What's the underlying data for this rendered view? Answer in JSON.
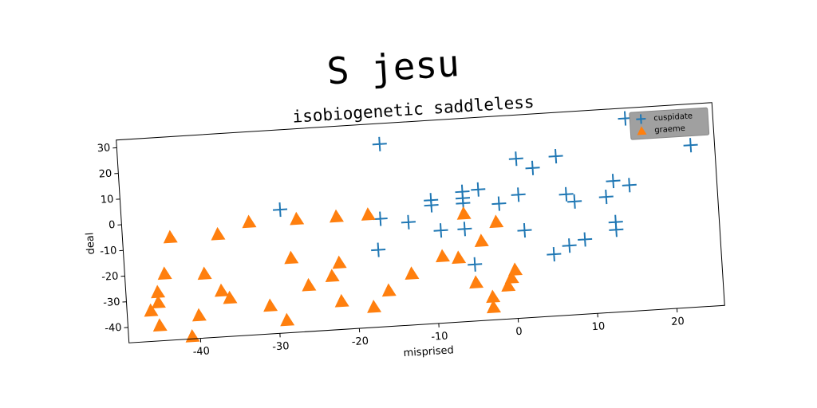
{
  "chart_data": {
    "type": "scatter",
    "suptitle": "S jesu",
    "title": "isobiogenetic saddleless",
    "xlabel": "misprised",
    "ylabel": "deal",
    "xlim": [
      -49,
      26
    ],
    "ylim": [
      -46,
      33
    ],
    "xticks": [
      -40,
      -30,
      -20,
      -10,
      0,
      10,
      20
    ],
    "yticks": [
      -40,
      -30,
      -20,
      -10,
      0,
      10,
      20,
      30
    ],
    "legend": "upper right",
    "series": [
      {
        "name": "cuspidate",
        "color": "#1f77b4",
        "marker": "plus",
        "x": [
          -16,
          -29,
          -16.5,
          -17,
          -13,
          -10,
          -10,
          -9,
          -6,
          -6,
          -6,
          -6,
          -4,
          -5,
          -1.5,
          1,
          1,
          1.5,
          3,
          6,
          5,
          7,
          7,
          8,
          9,
          12,
          13,
          13,
          13,
          15,
          15,
          23
        ],
        "values": [
          25,
          2,
          -4,
          -16,
          -6,
          0,
          2,
          -10,
          4.5,
          2,
          -10,
          0,
          5,
          -24,
          -1,
          16,
          2,
          -12,
          12,
          16,
          -22,
          1,
          -19,
          -2,
          -17,
          -1,
          5,
          -11,
          -14,
          3,
          29,
          17
        ]
      },
      {
        "name": "graeme",
        "color": "#ff7f0e",
        "marker": "triangle",
        "x": [
          -43,
          -44,
          -45,
          -45,
          -46,
          -45,
          -41,
          -40,
          -39,
          -37,
          -36,
          -37,
          -33,
          -31,
          -29,
          -28,
          -27,
          -26,
          -23,
          -22,
          -22,
          -22,
          -18,
          -18,
          -16,
          -13,
          -9,
          -7,
          -6,
          -5,
          -4,
          -2,
          -3,
          -3,
          -1,
          -0.5,
          0
        ],
        "values": [
          -6,
          -20,
          -27,
          -31,
          -34,
          -40,
          -45,
          -37,
          -21,
          -28,
          -31,
          -6,
          -2,
          -35,
          -41,
          -17,
          -2,
          -28,
          -25,
          -20,
          -2,
          -35,
          -2,
          -38,
          -32,
          -26,
          -20,
          -21,
          -4,
          -31,
          -15,
          -8,
          -37,
          -41,
          -33,
          -30,
          -27
        ]
      }
    ]
  }
}
